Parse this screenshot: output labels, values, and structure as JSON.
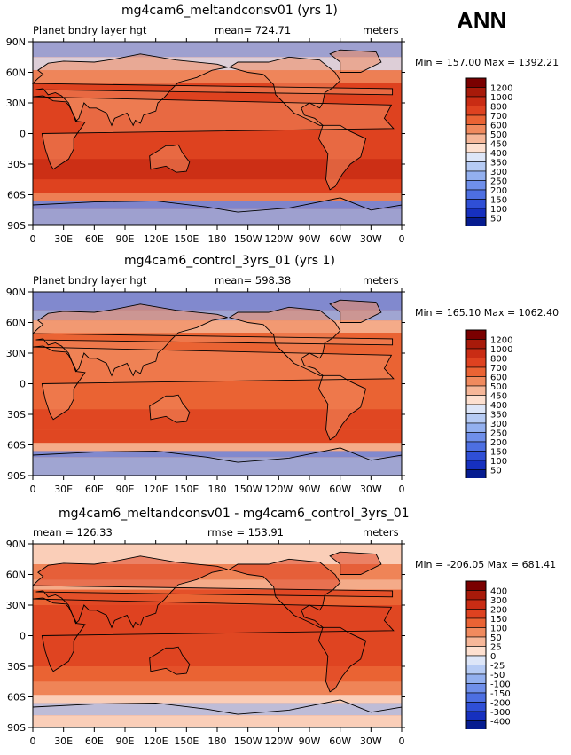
{
  "page": {
    "season_label": "ANN"
  },
  "chart_data": [
    {
      "type": "heatmap",
      "title": "mg4cam6_meltandconsv01 (yrs 1)",
      "left_label": "Planet bndry layer hgt",
      "center_label": "mean= 724.71",
      "right_label": "meters",
      "min_max": "Min = 157.00 Max = 1392.21",
      "x_ticks": [
        "0",
        "30E",
        "60E",
        "90E",
        "120E",
        "150E",
        "180",
        "150W",
        "120W",
        "90W",
        "60W",
        "30W",
        "0"
      ],
      "y_ticks": [
        "90N",
        "60N",
        "30N",
        "0",
        "30S",
        "60S",
        "90S"
      ],
      "ylim": [
        -90,
        90
      ],
      "levels": [
        "1200",
        "1000",
        "800",
        "700",
        "600",
        "500",
        "450",
        "400",
        "350",
        "300",
        "250",
        "200",
        "150",
        "100",
        "50"
      ],
      "colors": [
        "#7a0000",
        "#a81a0a",
        "#c92c14",
        "#de4220",
        "#ea6334",
        "#f08a5e",
        "#f6b799",
        "#fde0d0",
        "#dde6f8",
        "#b6cbf4",
        "#93b0ef",
        "#6f8fea",
        "#4d6fe2",
        "#2f4fd6",
        "#1630bf",
        "#061c90"
      ],
      "mean": 724.71,
      "min": 157.0,
      "max": 1392.21
    },
    {
      "type": "heatmap",
      "title": "mg4cam6_control_3yrs_01 (yrs 1)",
      "left_label": "Planet bndry layer hgt",
      "center_label": "mean= 598.38",
      "right_label": "meters",
      "min_max": "Min = 165.10 Max = 1062.40",
      "x_ticks": [
        "0",
        "30E",
        "60E",
        "90E",
        "120E",
        "150E",
        "180",
        "150W",
        "120W",
        "90W",
        "60W",
        "30W",
        "0"
      ],
      "y_ticks": [
        "90N",
        "60N",
        "30N",
        "0",
        "30S",
        "60S",
        "90S"
      ],
      "ylim": [
        -90,
        90
      ],
      "levels": [
        "1200",
        "1000",
        "800",
        "700",
        "600",
        "500",
        "450",
        "400",
        "350",
        "300",
        "250",
        "200",
        "150",
        "100",
        "50"
      ],
      "colors": [
        "#7a0000",
        "#a81a0a",
        "#c92c14",
        "#de4220",
        "#ea6334",
        "#f08a5e",
        "#f6b799",
        "#fde0d0",
        "#dde6f8",
        "#b6cbf4",
        "#93b0ef",
        "#6f8fea",
        "#4d6fe2",
        "#2f4fd6",
        "#1630bf",
        "#061c90"
      ],
      "mean": 598.38,
      "min": 165.1,
      "max": 1062.4
    },
    {
      "type": "heatmap",
      "title": "mg4cam6_meltandconsv01 - mg4cam6_control_3yrs_01",
      "left_label": "mean = 126.33",
      "center_label": "rmse = 153.91",
      "right_label": "meters",
      "min_max": "Min = -206.05 Max = 681.41",
      "x_ticks": [
        "0",
        "30E",
        "60E",
        "90E",
        "120E",
        "150E",
        "180",
        "150W",
        "120W",
        "90W",
        "60W",
        "30W",
        "0"
      ],
      "y_ticks": [
        "90N",
        "60N",
        "30N",
        "0",
        "30S",
        "60S",
        "90S"
      ],
      "ylim": [
        -90,
        90
      ],
      "levels": [
        "400",
        "300",
        "200",
        "150",
        "100",
        "50",
        "25",
        "0",
        "-25",
        "-50",
        "-100",
        "-150",
        "-200",
        "-300",
        "-400"
      ],
      "colors": [
        "#7a0000",
        "#a81a0a",
        "#c92c14",
        "#de4220",
        "#ea6334",
        "#f08a5e",
        "#f6b799",
        "#fde0d0",
        "#dde6f8",
        "#b6cbf4",
        "#93b0ef",
        "#6f8fea",
        "#4d6fe2",
        "#2f4fd6",
        "#1630bf",
        "#061c90"
      ],
      "mean": 126.33,
      "rmse": 153.91,
      "min": -206.05,
      "max": 681.41
    }
  ]
}
